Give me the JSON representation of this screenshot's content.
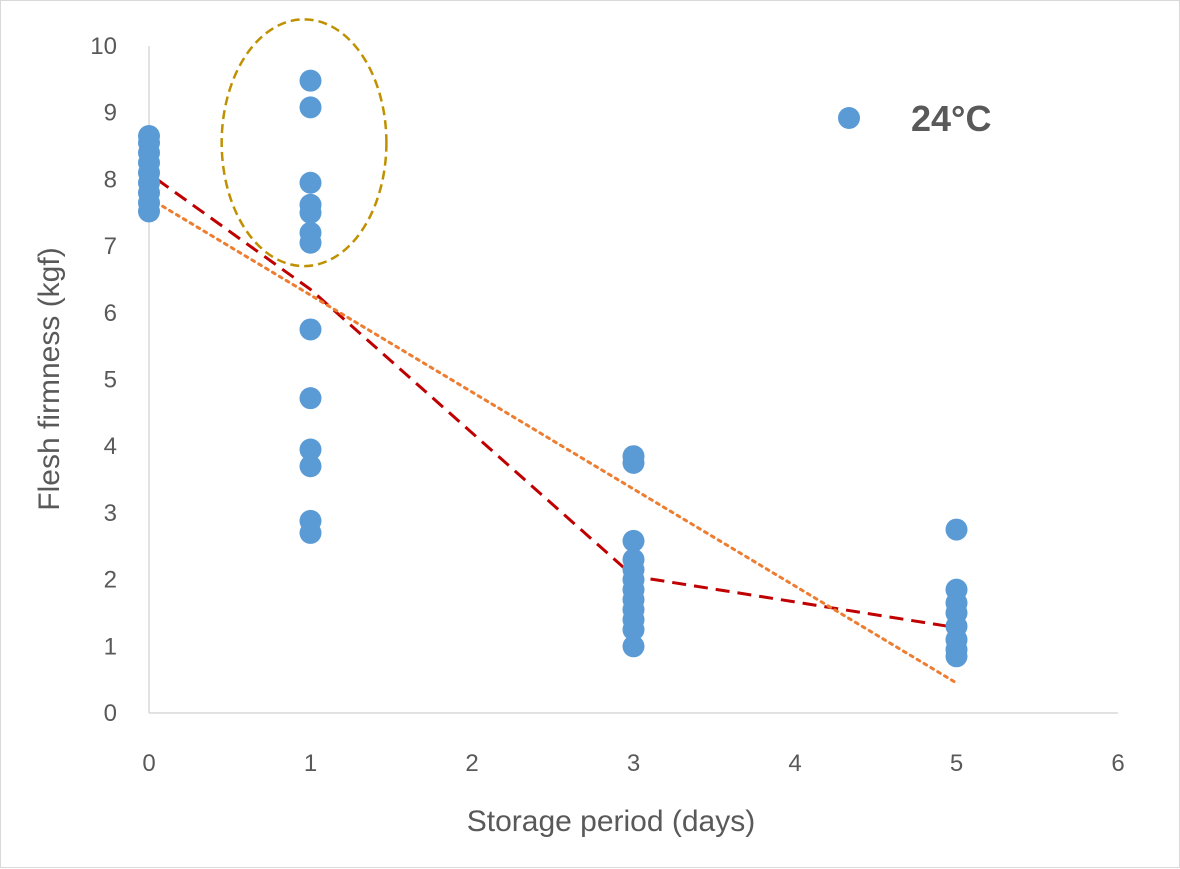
{
  "chart_data": {
    "type": "scatter",
    "xlabel": "Storage period (days)",
    "ylabel": "Flesh firmness (kgf)",
    "xlim": [
      0,
      6
    ],
    "ylim": [
      0,
      10
    ],
    "xticks": [
      "0",
      "1",
      "2",
      "3",
      "4",
      "5",
      "6"
    ],
    "yticks": [
      "0",
      "1",
      "2",
      "3",
      "4",
      "5",
      "6",
      "7",
      "8",
      "9",
      "10"
    ],
    "grid": false,
    "legend_position": "top-right",
    "marker_color": "#5b9bd5",
    "series": [
      {
        "name": "24°C",
        "points": [
          {
            "x": 0,
            "y": 8.65
          },
          {
            "x": 0,
            "y": 8.55
          },
          {
            "x": 0,
            "y": 8.4
          },
          {
            "x": 0,
            "y": 8.25
          },
          {
            "x": 0,
            "y": 8.1
          },
          {
            "x": 0,
            "y": 7.95
          },
          {
            "x": 0,
            "y": 7.8
          },
          {
            "x": 0,
            "y": 7.65
          },
          {
            "x": 0,
            "y": 7.52
          },
          {
            "x": 1,
            "y": 9.48
          },
          {
            "x": 1,
            "y": 9.08
          },
          {
            "x": 1,
            "y": 7.95
          },
          {
            "x": 1,
            "y": 7.62
          },
          {
            "x": 1,
            "y": 7.5
          },
          {
            "x": 1,
            "y": 7.2
          },
          {
            "x": 1,
            "y": 7.05
          },
          {
            "x": 1,
            "y": 5.75
          },
          {
            "x": 1,
            "y": 4.72
          },
          {
            "x": 1,
            "y": 3.95
          },
          {
            "x": 1,
            "y": 3.7
          },
          {
            "x": 1,
            "y": 2.88
          },
          {
            "x": 1,
            "y": 2.7
          },
          {
            "x": 3,
            "y": 3.85
          },
          {
            "x": 3,
            "y": 3.75
          },
          {
            "x": 3,
            "y": 2.58
          },
          {
            "x": 3,
            "y": 2.3
          },
          {
            "x": 3,
            "y": 2.15
          },
          {
            "x": 3,
            "y": 2.0
          },
          {
            "x": 3,
            "y": 1.85
          },
          {
            "x": 3,
            "y": 1.7
          },
          {
            "x": 3,
            "y": 1.55
          },
          {
            "x": 3,
            "y": 1.4
          },
          {
            "x": 3,
            "y": 1.25
          },
          {
            "x": 3,
            "y": 1.0
          },
          {
            "x": 5,
            "y": 2.75
          },
          {
            "x": 5,
            "y": 1.85
          },
          {
            "x": 5,
            "y": 1.65
          },
          {
            "x": 5,
            "y": 1.5
          },
          {
            "x": 5,
            "y": 1.3
          },
          {
            "x": 5,
            "y": 1.1
          },
          {
            "x": 5,
            "y": 0.95
          },
          {
            "x": 5,
            "y": 0.85
          }
        ]
      }
    ],
    "lines": [
      {
        "style": "dashed",
        "color": "#c00000",
        "points": [
          {
            "x": 0.05,
            "y": 8.0
          },
          {
            "x": 1,
            "y": 6.35
          },
          {
            "x": 3,
            "y": 2.05
          },
          {
            "x": 5,
            "y": 1.28
          }
        ]
      },
      {
        "style": "dotted",
        "color": "#ed7d31",
        "points": [
          {
            "x": 0,
            "y": 7.72
          },
          {
            "x": 5,
            "y": 0.45
          }
        ]
      }
    ],
    "annotations": [
      {
        "type": "ellipse",
        "style": "dashed",
        "color": "#bf9000",
        "x_range": [
          0.45,
          1.47
        ],
        "y_range": [
          6.7,
          10.4
        ]
      }
    ]
  }
}
